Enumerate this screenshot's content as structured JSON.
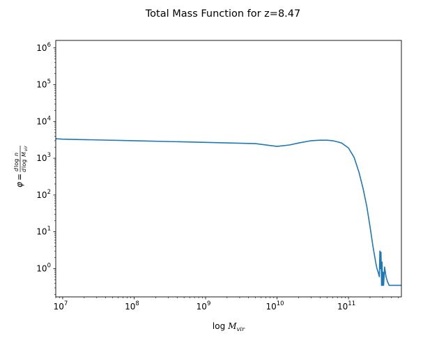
{
  "chart_data": {
    "type": "line",
    "title": "Total Mass Function for z=8.47",
    "xlabel": "log M_vir",
    "ylabel": "φ = dlog n / dlog M_vir",
    "x_scale": "log",
    "y_scale": "log",
    "xlim": [
      8000000.0,
      550000000000.0
    ],
    "ylim": [
      0.17,
      1600000.0
    ],
    "grid": false,
    "legend": "none",
    "x_ticks": [
      {
        "base": "10",
        "exp": "7",
        "value": 10000000.0
      },
      {
        "base": "10",
        "exp": "8",
        "value": 100000000.0
      },
      {
        "base": "10",
        "exp": "9",
        "value": 1000000000.0
      },
      {
        "base": "10",
        "exp": "10",
        "value": 10000000000.0
      },
      {
        "base": "10",
        "exp": "11",
        "value": 100000000000.0
      }
    ],
    "y_ticks": [
      {
        "base": "10",
        "exp": "0",
        "value": 1
      },
      {
        "base": "10",
        "exp": "1",
        "value": 10
      },
      {
        "base": "10",
        "exp": "2",
        "value": 100
      },
      {
        "base": "10",
        "exp": "3",
        "value": 1000
      },
      {
        "base": "10",
        "exp": "4",
        "value": 10000
      },
      {
        "base": "10",
        "exp": "5",
        "value": 100000
      },
      {
        "base": "10",
        "exp": "6",
        "value": 1000000
      }
    ],
    "series": [
      {
        "color": "#1f77b4",
        "x": [
          8000000.0,
          10000000.0,
          100000000.0,
          1000000000.0,
          5000000000.0,
          10000000000.0,
          15000000000.0,
          20000000000.0,
          30000000000.0,
          40000000000.0,
          50000000000.0,
          60000000000.0,
          70000000000.0,
          80000000000.0,
          100000000000.0,
          120000000000.0,
          140000000000.0,
          160000000000.0,
          180000000000.0,
          200000000000.0,
          220000000000.0,
          240000000000.0,
          250000000000.0,
          260000000000.0,
          270000000000.0,
          275000000000.0,
          280000000000.0,
          285000000000.0,
          290000000000.0,
          295000000000.0,
          300000000000.0,
          305000000000.0,
          310000000000.0,
          320000000000.0,
          335000000000.0,
          350000000000.0,
          370000000000.0,
          400000000000.0,
          550000000000.0
        ],
        "y": [
          3400,
          3300,
          3000,
          2700,
          2500,
          2100,
          2300,
          2600,
          3000,
          3100,
          3100,
          3000,
          2800,
          2600,
          1900,
          1050,
          420,
          150,
          50,
          14,
          4,
          1.5,
          1.0,
          0.8,
          0.6,
          3.0,
          1.0,
          2.8,
          0.35,
          1.5,
          0.35,
          0.8,
          0.35,
          1.1,
          0.6,
          0.45,
          0.35,
          0.35,
          0.35
        ]
      }
    ]
  }
}
